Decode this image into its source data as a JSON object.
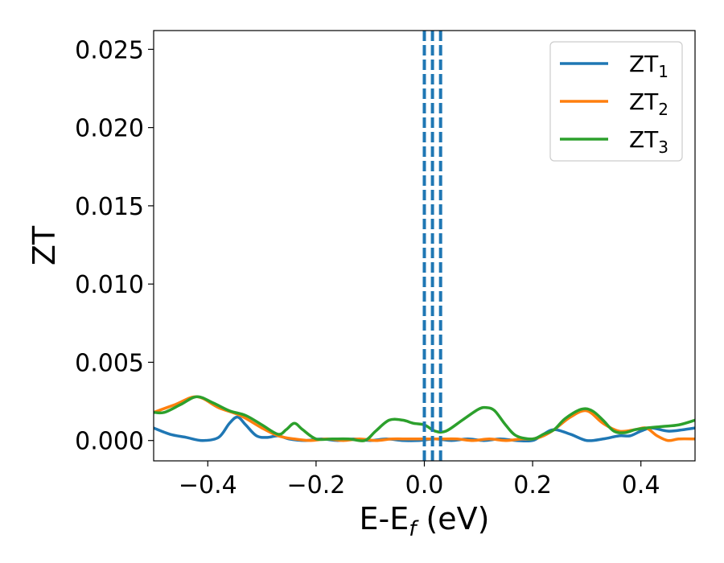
{
  "chart_data": {
    "type": "line",
    "xlabel": "E-E",
    "xlabel_subscript": "f",
    "xlabel_unit": " (eV)",
    "ylabel": "ZT",
    "xlim": [
      -0.5,
      0.5
    ],
    "ylim": [
      -0.0013,
      0.0262
    ],
    "x_ticks": [
      -0.4,
      -0.2,
      0.0,
      0.2,
      0.4
    ],
    "x_tick_labels": [
      "−0.4",
      "−0.2",
      "0.0",
      "0.2",
      "0.4"
    ],
    "y_ticks": [
      0.0,
      0.005,
      0.01,
      0.015,
      0.02,
      0.025
    ],
    "y_tick_labels": [
      "0.000",
      "0.005",
      "0.010",
      "0.015",
      "0.020",
      "0.025"
    ],
    "grid": false,
    "legend_position": "top-right",
    "colors": {
      "ZT1": "#1f77b4",
      "ZT2": "#ff7f0e",
      "ZT3": "#2ca02c",
      "fermi": "#000000",
      "dashed": "#1f77b4"
    },
    "vertical_lines": [
      {
        "x": 0.0,
        "color": "#000000",
        "style": "dashed"
      },
      {
        "x": 0.0,
        "color": "#1f77b4",
        "style": "dashed"
      },
      {
        "x": 0.015,
        "color": "#1f77b4",
        "style": "dashed"
      },
      {
        "x": 0.03,
        "color": "#1f77b4",
        "style": "dashed"
      }
    ],
    "series": [
      {
        "name": "ZT",
        "subscript": "1",
        "color": "#1f77b4",
        "x": [
          -0.5,
          -0.47,
          -0.44,
          -0.41,
          -0.38,
          -0.36,
          -0.345,
          -0.33,
          -0.31,
          -0.29,
          -0.27,
          -0.25,
          -0.22,
          -0.19,
          -0.16,
          -0.13,
          -0.1,
          -0.07,
          -0.04,
          -0.01,
          0.02,
          0.05,
          0.08,
          0.11,
          0.14,
          0.17,
          0.2,
          0.22,
          0.24,
          0.27,
          0.3,
          0.33,
          0.36,
          0.38,
          0.4,
          0.42,
          0.45,
          0.48,
          0.5
        ],
        "y": [
          0.0008,
          0.0004,
          0.0002,
          0.0,
          0.0002,
          0.0011,
          0.0015,
          0.001,
          0.0003,
          0.0002,
          0.0003,
          0.0001,
          0.0,
          0.0001,
          0.0,
          0.0001,
          0.0,
          0.0001,
          0.0,
          0.0,
          0.0001,
          0.0,
          0.0001,
          0.0,
          0.0001,
          0.0,
          0.0,
          0.0004,
          0.0007,
          0.0004,
          0.0,
          0.0001,
          0.0003,
          0.0003,
          0.0006,
          0.0008,
          0.0006,
          0.0007,
          0.0008
        ]
      },
      {
        "name": "ZT",
        "subscript": "2",
        "color": "#ff7f0e",
        "x": [
          -0.5,
          -0.46,
          -0.42,
          -0.38,
          -0.34,
          -0.3,
          -0.27,
          -0.24,
          -0.21,
          -0.18,
          -0.15,
          -0.12,
          -0.09,
          -0.06,
          -0.03,
          0.0,
          0.03,
          0.06,
          0.09,
          0.12,
          0.15,
          0.18,
          0.2,
          0.22,
          0.24,
          0.27,
          0.3,
          0.33,
          0.36,
          0.39,
          0.41,
          0.43,
          0.45,
          0.47,
          0.5
        ],
        "y": [
          0.0018,
          0.0023,
          0.0028,
          0.0021,
          0.0016,
          0.0008,
          0.0003,
          0.0001,
          0.0,
          0.0001,
          0.0,
          0.0001,
          0.0,
          0.0001,
          0.0001,
          0.0001,
          0.0001,
          0.0001,
          0.0,
          0.0001,
          0.0,
          0.0001,
          0.0001,
          0.0003,
          0.0007,
          0.0015,
          0.0019,
          0.0011,
          0.0006,
          0.0007,
          0.0008,
          0.0003,
          0.0,
          0.0001,
          0.0001
        ]
      },
      {
        "name": "ZT",
        "subscript": "3",
        "color": "#2ca02c",
        "x": [
          -0.5,
          -0.48,
          -0.45,
          -0.42,
          -0.39,
          -0.36,
          -0.33,
          -0.3,
          -0.27,
          -0.255,
          -0.24,
          -0.225,
          -0.2,
          -0.17,
          -0.14,
          -0.11,
          -0.09,
          -0.065,
          -0.04,
          -0.02,
          0.0,
          0.02,
          0.04,
          0.07,
          0.1,
          0.115,
          0.13,
          0.15,
          0.17,
          0.2,
          0.22,
          0.24,
          0.26,
          0.29,
          0.31,
          0.33,
          0.35,
          0.37,
          0.39,
          0.41,
          0.44,
          0.47,
          0.5
        ],
        "y": [
          0.0018,
          0.0018,
          0.0023,
          0.0028,
          0.0024,
          0.0019,
          0.0016,
          0.001,
          0.0004,
          0.0007,
          0.0011,
          0.0007,
          0.0001,
          0.0001,
          0.0001,
          0.0,
          0.0006,
          0.0013,
          0.0013,
          0.0011,
          0.001,
          0.0006,
          0.0006,
          0.0013,
          0.002,
          0.0021,
          0.0019,
          0.001,
          0.0003,
          0.0001,
          0.0004,
          0.0007,
          0.0014,
          0.002,
          0.0019,
          0.0013,
          0.0006,
          0.0005,
          0.0007,
          0.0008,
          0.0009,
          0.001,
          0.0013
        ]
      }
    ]
  }
}
